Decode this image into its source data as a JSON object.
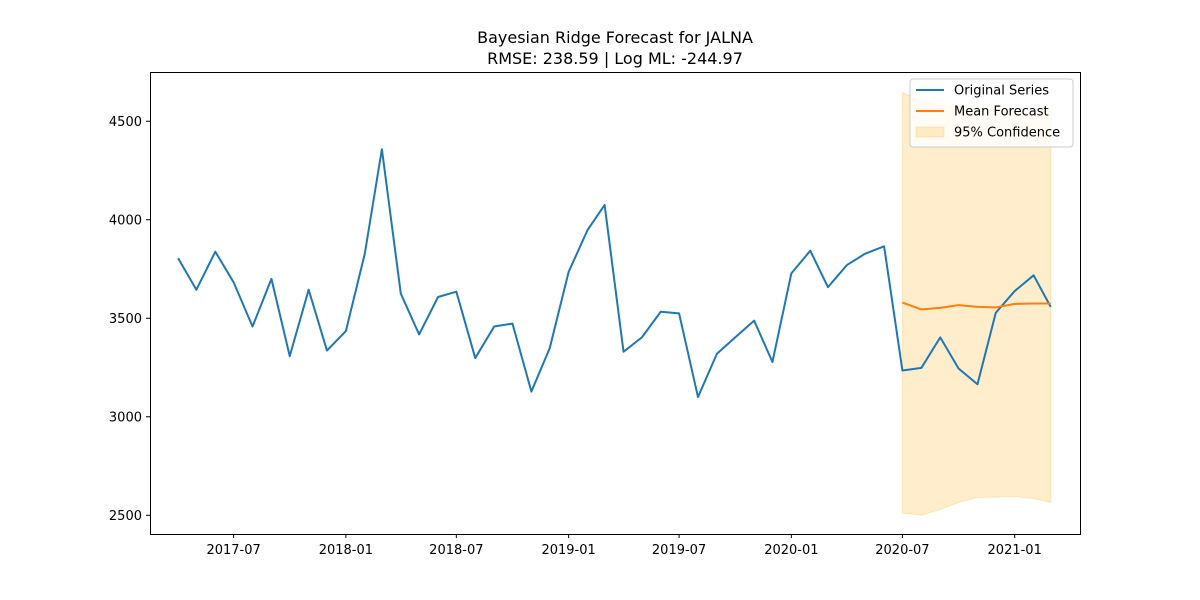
{
  "chart_data": {
    "type": "line",
    "title": "Bayesian Ridge Forecast for JALNA",
    "subtitle": "RMSE: 238.59 | Log ML: -244.97",
    "xlabel": "",
    "ylabel": "",
    "xlim": [
      "2017-02-14",
      "2021-04-18"
    ],
    "ylim": [
      2405,
      4750
    ],
    "x_ticks": [
      "2017-07",
      "2018-01",
      "2018-07",
      "2019-01",
      "2019-07",
      "2020-01",
      "2020-07",
      "2021-01"
    ],
    "y_ticks": [
      2500,
      3000,
      3500,
      4000,
      4500
    ],
    "grid": false,
    "legend": {
      "position": "upper right",
      "entries": [
        {
          "label": "Original Series",
          "color": "#1f77b4",
          "kind": "line"
        },
        {
          "label": "Mean Forecast",
          "color": "#ff7f0e",
          "kind": "line"
        },
        {
          "label": "95% Confidence",
          "color": "#ffa500",
          "kind": "band"
        }
      ]
    },
    "series": [
      {
        "name": "Original Series",
        "color": "#1f77b4",
        "x": [
          "2017-04",
          "2017-05",
          "2017-06",
          "2017-07",
          "2017-08",
          "2017-09",
          "2017-10",
          "2017-11",
          "2017-12",
          "2018-01",
          "2018-02",
          "2018-03",
          "2018-04",
          "2018-05",
          "2018-06",
          "2018-07",
          "2018-08",
          "2018-09",
          "2018-10",
          "2018-11",
          "2018-12",
          "2019-01",
          "2019-02",
          "2019-03",
          "2019-04",
          "2019-05",
          "2019-06",
          "2019-07",
          "2019-08",
          "2019-09",
          "2019-10",
          "2019-11",
          "2019-12",
          "2020-01",
          "2020-02",
          "2020-03",
          "2020-04",
          "2020-05",
          "2020-06",
          "2020-07",
          "2020-08",
          "2020-09",
          "2020-10",
          "2020-11",
          "2020-12",
          "2021-01",
          "2021-02",
          "2021-03"
        ],
        "values": [
          3805,
          3645,
          3838,
          3683,
          3458,
          3700,
          3308,
          3645,
          3336,
          3435,
          3828,
          4358,
          3625,
          3418,
          3608,
          3635,
          3298,
          3458,
          3473,
          3128,
          3348,
          3735,
          3948,
          4075,
          3330,
          3403,
          3533,
          3525,
          3100,
          3320,
          3403,
          3488,
          3278,
          3728,
          3843,
          3658,
          3770,
          3828,
          3865,
          3235,
          3248,
          3403,
          3245,
          3165,
          3528,
          3638,
          3718,
          3558
        ]
      },
      {
        "name": "Mean Forecast",
        "color": "#ff7f0e",
        "x": [
          "2020-07",
          "2020-08",
          "2020-09",
          "2020-10",
          "2020-11",
          "2020-12",
          "2021-01",
          "2021-02",
          "2021-03"
        ],
        "values": [
          3580,
          3545,
          3553,
          3567,
          3558,
          3555,
          3573,
          3575,
          3575
        ]
      }
    ],
    "confidence_band": {
      "name": "95% Confidence",
      "color": "#ffa500",
      "opacity": 0.2,
      "x": [
        "2020-07",
        "2020-08",
        "2020-09",
        "2020-10",
        "2020-11",
        "2020-12",
        "2021-01",
        "2021-02",
        "2021-03"
      ],
      "lower": [
        2510,
        2500,
        2530,
        2565,
        2590,
        2592,
        2595,
        2585,
        2565
      ],
      "upper": [
        4645,
        4605,
        4580,
        4575,
        4565,
        4560,
        4550,
        4535,
        4560
      ]
    }
  }
}
